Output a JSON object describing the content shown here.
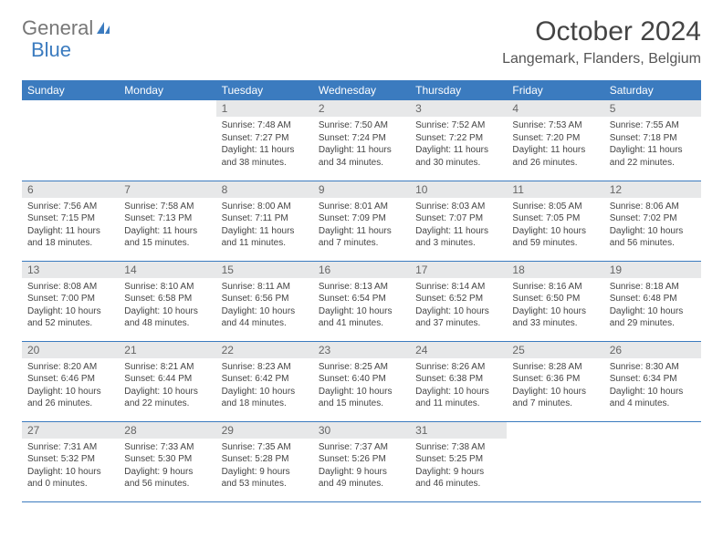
{
  "brand": {
    "part1": "General",
    "part2": "Blue"
  },
  "title": "October 2024",
  "location": "Langemark, Flanders, Belgium",
  "colors": {
    "header_bg": "#3b7bbf",
    "header_text": "#ffffff",
    "daynum_bg": "#e7e8e9",
    "daynum_text": "#666666",
    "body_text": "#444444",
    "row_border": "#3b7bbf"
  },
  "weekdays": [
    "Sunday",
    "Monday",
    "Tuesday",
    "Wednesday",
    "Thursday",
    "Friday",
    "Saturday"
  ],
  "weeks": [
    [
      null,
      null,
      {
        "n": "1",
        "sr": "Sunrise: 7:48 AM",
        "ss": "Sunset: 7:27 PM",
        "dl": "Daylight: 11 hours and 38 minutes."
      },
      {
        "n": "2",
        "sr": "Sunrise: 7:50 AM",
        "ss": "Sunset: 7:24 PM",
        "dl": "Daylight: 11 hours and 34 minutes."
      },
      {
        "n": "3",
        "sr": "Sunrise: 7:52 AM",
        "ss": "Sunset: 7:22 PM",
        "dl": "Daylight: 11 hours and 30 minutes."
      },
      {
        "n": "4",
        "sr": "Sunrise: 7:53 AM",
        "ss": "Sunset: 7:20 PM",
        "dl": "Daylight: 11 hours and 26 minutes."
      },
      {
        "n": "5",
        "sr": "Sunrise: 7:55 AM",
        "ss": "Sunset: 7:18 PM",
        "dl": "Daylight: 11 hours and 22 minutes."
      }
    ],
    [
      {
        "n": "6",
        "sr": "Sunrise: 7:56 AM",
        "ss": "Sunset: 7:15 PM",
        "dl": "Daylight: 11 hours and 18 minutes."
      },
      {
        "n": "7",
        "sr": "Sunrise: 7:58 AM",
        "ss": "Sunset: 7:13 PM",
        "dl": "Daylight: 11 hours and 15 minutes."
      },
      {
        "n": "8",
        "sr": "Sunrise: 8:00 AM",
        "ss": "Sunset: 7:11 PM",
        "dl": "Daylight: 11 hours and 11 minutes."
      },
      {
        "n": "9",
        "sr": "Sunrise: 8:01 AM",
        "ss": "Sunset: 7:09 PM",
        "dl": "Daylight: 11 hours and 7 minutes."
      },
      {
        "n": "10",
        "sr": "Sunrise: 8:03 AM",
        "ss": "Sunset: 7:07 PM",
        "dl": "Daylight: 11 hours and 3 minutes."
      },
      {
        "n": "11",
        "sr": "Sunrise: 8:05 AM",
        "ss": "Sunset: 7:05 PM",
        "dl": "Daylight: 10 hours and 59 minutes."
      },
      {
        "n": "12",
        "sr": "Sunrise: 8:06 AM",
        "ss": "Sunset: 7:02 PM",
        "dl": "Daylight: 10 hours and 56 minutes."
      }
    ],
    [
      {
        "n": "13",
        "sr": "Sunrise: 8:08 AM",
        "ss": "Sunset: 7:00 PM",
        "dl": "Daylight: 10 hours and 52 minutes."
      },
      {
        "n": "14",
        "sr": "Sunrise: 8:10 AM",
        "ss": "Sunset: 6:58 PM",
        "dl": "Daylight: 10 hours and 48 minutes."
      },
      {
        "n": "15",
        "sr": "Sunrise: 8:11 AM",
        "ss": "Sunset: 6:56 PM",
        "dl": "Daylight: 10 hours and 44 minutes."
      },
      {
        "n": "16",
        "sr": "Sunrise: 8:13 AM",
        "ss": "Sunset: 6:54 PM",
        "dl": "Daylight: 10 hours and 41 minutes."
      },
      {
        "n": "17",
        "sr": "Sunrise: 8:14 AM",
        "ss": "Sunset: 6:52 PM",
        "dl": "Daylight: 10 hours and 37 minutes."
      },
      {
        "n": "18",
        "sr": "Sunrise: 8:16 AM",
        "ss": "Sunset: 6:50 PM",
        "dl": "Daylight: 10 hours and 33 minutes."
      },
      {
        "n": "19",
        "sr": "Sunrise: 8:18 AM",
        "ss": "Sunset: 6:48 PM",
        "dl": "Daylight: 10 hours and 29 minutes."
      }
    ],
    [
      {
        "n": "20",
        "sr": "Sunrise: 8:20 AM",
        "ss": "Sunset: 6:46 PM",
        "dl": "Daylight: 10 hours and 26 minutes."
      },
      {
        "n": "21",
        "sr": "Sunrise: 8:21 AM",
        "ss": "Sunset: 6:44 PM",
        "dl": "Daylight: 10 hours and 22 minutes."
      },
      {
        "n": "22",
        "sr": "Sunrise: 8:23 AM",
        "ss": "Sunset: 6:42 PM",
        "dl": "Daylight: 10 hours and 18 minutes."
      },
      {
        "n": "23",
        "sr": "Sunrise: 8:25 AM",
        "ss": "Sunset: 6:40 PM",
        "dl": "Daylight: 10 hours and 15 minutes."
      },
      {
        "n": "24",
        "sr": "Sunrise: 8:26 AM",
        "ss": "Sunset: 6:38 PM",
        "dl": "Daylight: 10 hours and 11 minutes."
      },
      {
        "n": "25",
        "sr": "Sunrise: 8:28 AM",
        "ss": "Sunset: 6:36 PM",
        "dl": "Daylight: 10 hours and 7 minutes."
      },
      {
        "n": "26",
        "sr": "Sunrise: 8:30 AM",
        "ss": "Sunset: 6:34 PM",
        "dl": "Daylight: 10 hours and 4 minutes."
      }
    ],
    [
      {
        "n": "27",
        "sr": "Sunrise: 7:31 AM",
        "ss": "Sunset: 5:32 PM",
        "dl": "Daylight: 10 hours and 0 minutes."
      },
      {
        "n": "28",
        "sr": "Sunrise: 7:33 AM",
        "ss": "Sunset: 5:30 PM",
        "dl": "Daylight: 9 hours and 56 minutes."
      },
      {
        "n": "29",
        "sr": "Sunrise: 7:35 AM",
        "ss": "Sunset: 5:28 PM",
        "dl": "Daylight: 9 hours and 53 minutes."
      },
      {
        "n": "30",
        "sr": "Sunrise: 7:37 AM",
        "ss": "Sunset: 5:26 PM",
        "dl": "Daylight: 9 hours and 49 minutes."
      },
      {
        "n": "31",
        "sr": "Sunrise: 7:38 AM",
        "ss": "Sunset: 5:25 PM",
        "dl": "Daylight: 9 hours and 46 minutes."
      },
      null,
      null
    ]
  ]
}
